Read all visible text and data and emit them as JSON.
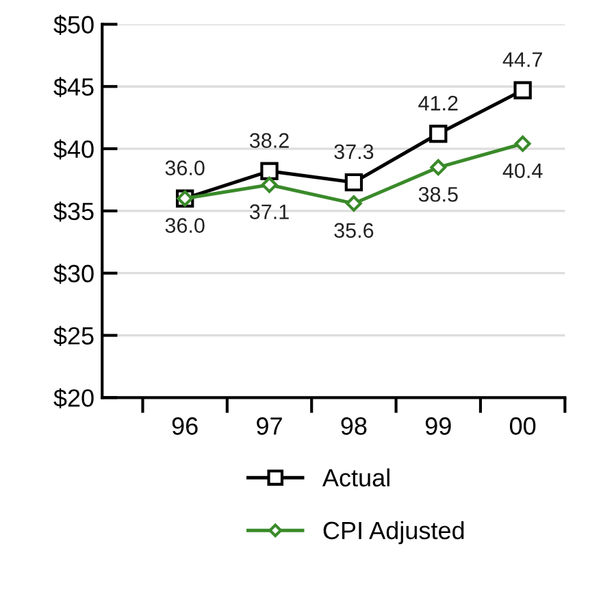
{
  "chart_data": {
    "type": "line",
    "categories": [
      "96",
      "97",
      "98",
      "99",
      "00"
    ],
    "series": [
      {
        "name": "Actual",
        "color": "#000000",
        "marker": "square",
        "values": [
          36.0,
          38.2,
          37.3,
          41.2,
          44.7
        ],
        "value_labels": [
          "36.0",
          "38.2",
          "37.3",
          "41.2",
          "44.7"
        ]
      },
      {
        "name": "CPI Adjusted",
        "color": "#3a8a2a",
        "marker": "diamond",
        "values": [
          36.0,
          37.1,
          35.6,
          38.5,
          40.4
        ],
        "value_labels": [
          "36.0",
          "37.1",
          "35.6",
          "38.5",
          "40.4"
        ]
      }
    ],
    "ylim": [
      20,
      50
    ],
    "yticks": [
      {
        "value": 20,
        "label": "$20"
      },
      {
        "value": 25,
        "label": "$25"
      },
      {
        "value": 30,
        "label": "$30"
      },
      {
        "value": 35,
        "label": "$35"
      },
      {
        "value": 40,
        "label": "$40"
      },
      {
        "value": 45,
        "label": "$45"
      },
      {
        "value": 50,
        "label": "$50"
      }
    ],
    "grid": "y",
    "legend": "bottom"
  }
}
